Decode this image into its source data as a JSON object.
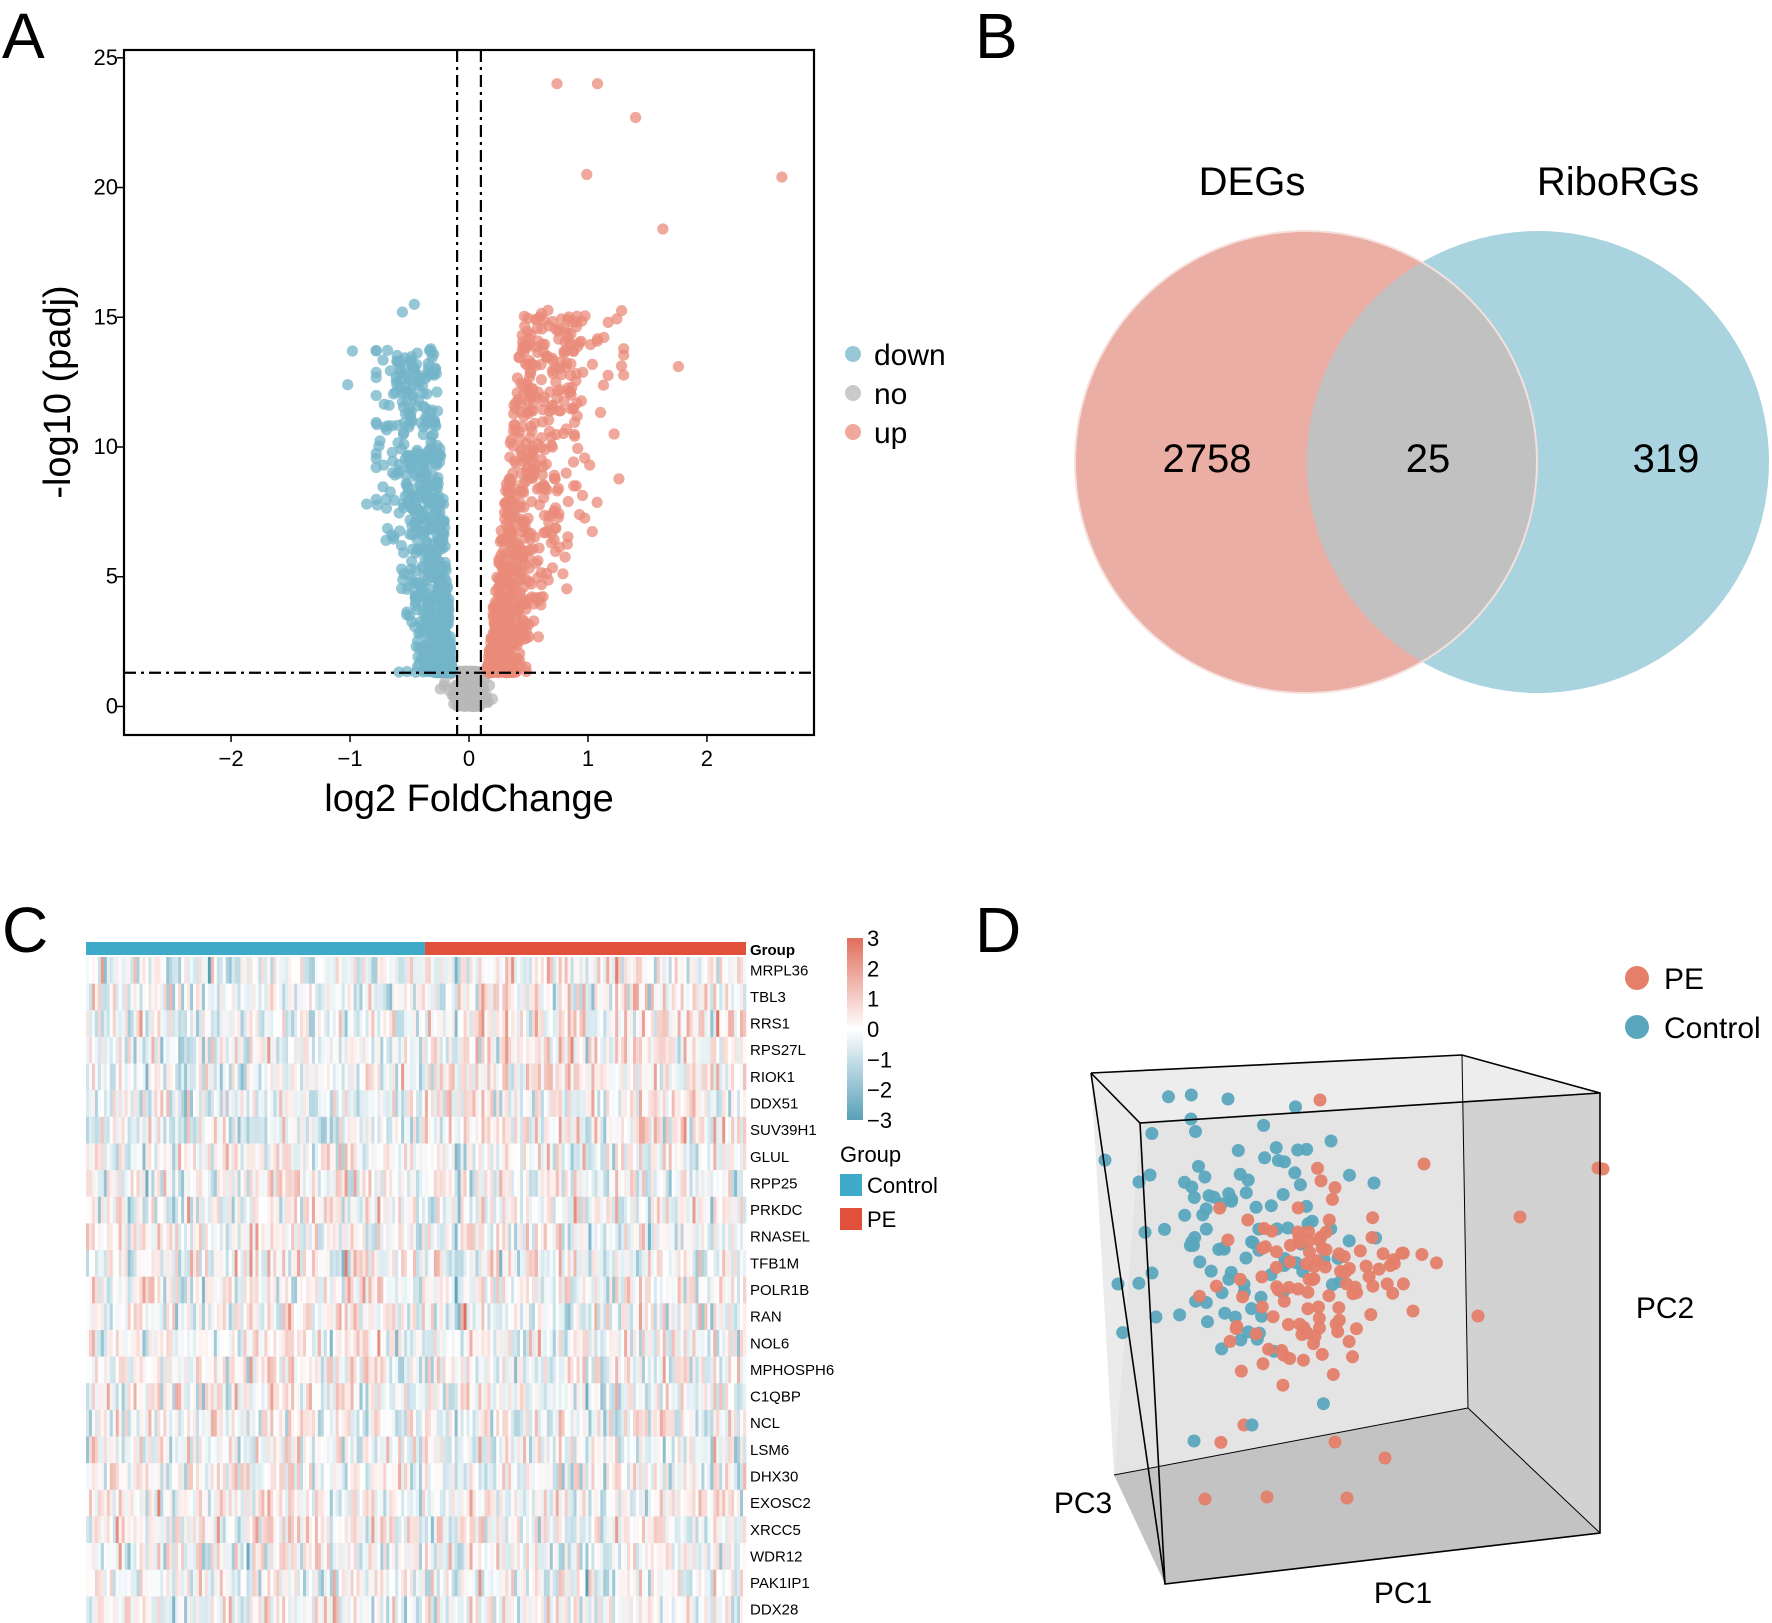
{
  "panels": {
    "a": {
      "letter": "A"
    },
    "b": {
      "letter": "B"
    },
    "c": {
      "letter": "C"
    },
    "d": {
      "letter": "D"
    }
  },
  "colors": {
    "down": "#73b4c8",
    "no": "#b8b8b8",
    "up": "#e98b7a",
    "deg_circle": "#ebaea4",
    "ribo_circle": "#a9d3de",
    "overlap": "#c1c1c1",
    "control_bar": "#3ea9c8",
    "pe_bar": "#e0503b",
    "pca_pe": "#e4806a",
    "pca_control": "#5aa7bd"
  },
  "chart_data": [
    {
      "type": "scatter",
      "panel": "A",
      "title": "",
      "xlabel": "log2 FoldChange",
      "ylabel": "-log10 (padj)",
      "xlim": [
        -2.9,
        2.9
      ],
      "ylim": [
        -1.1,
        25.3
      ],
      "xticks": [
        -2,
        -1,
        0,
        1,
        2
      ],
      "yticks": [
        0,
        5,
        10,
        15,
        20,
        25
      ],
      "xtick_labels": [
        "−2",
        "−1",
        "0",
        "1",
        "2"
      ],
      "ytick_labels": [
        "0",
        "5",
        "10",
        "15",
        "20",
        "25"
      ],
      "vlines": [
        -0.1,
        0.1
      ],
      "hline": 1.3,
      "legend": [
        "down",
        "no",
        "up"
      ],
      "highlighted_points": {
        "up": [
          [
            0.74,
            24.0
          ],
          [
            1.08,
            24.0
          ],
          [
            1.4,
            22.7
          ],
          [
            2.63,
            20.4
          ],
          [
            1.63,
            18.4
          ],
          [
            1.76,
            13.1
          ],
          [
            1.22,
            10.5
          ],
          [
            0.99,
            20.5
          ],
          [
            1.17,
            14.8
          ],
          [
            0.88,
            8.5
          ]
        ],
        "down": [
          [
            -0.98,
            13.7
          ],
          [
            -1.02,
            12.4
          ],
          [
            -0.86,
            7.8
          ],
          [
            -0.56,
            15.2
          ],
          [
            -0.46,
            15.5
          ],
          [
            -0.6,
            13.3
          ]
        ]
      },
      "bulk_counts": {
        "down": 700,
        "no": 450,
        "up": 780
      }
    },
    {
      "type": "venn",
      "panel": "B",
      "sets": [
        "DEGs",
        "RiboRGs"
      ],
      "only_degs": "2758",
      "intersection": "25",
      "only_riborgs": "319"
    },
    {
      "type": "heatmap",
      "panel": "C",
      "group_header": "Group",
      "rows": [
        "MRPL36",
        "TBL3",
        "RRS1",
        "RPS27L",
        "RIOK1",
        "DDX51",
        "SUV39H1",
        "GLUL",
        "RPP25",
        "PRKDC",
        "RNASEL",
        "TFB1M",
        "POLR1B",
        "RAN",
        "NOL6",
        "MPHOSPH6",
        "C1QBP",
        "NCL",
        "LSM6",
        "DHX30",
        "EXOSC2",
        "XRCC5",
        "WDR12",
        "PAK1IP1",
        "DDX28"
      ],
      "groups": [
        {
          "name": "Control",
          "n_samples": 114
        },
        {
          "name": "PE",
          "n_samples": 108
        }
      ],
      "color_scale": {
        "min": -3,
        "max": 3,
        "ticks": [
          "3",
          "2",
          "1",
          "0",
          "−1",
          "−2",
          "−3"
        ]
      },
      "legend_title": "Group",
      "legend": [
        "Control",
        "PE"
      ]
    },
    {
      "type": "scatter3d",
      "panel": "D",
      "axes": [
        "PC1",
        "PC2",
        "PC3"
      ],
      "legend": [
        "PE",
        "Control"
      ],
      "series": [
        {
          "name": "PE",
          "n_points": 110
        },
        {
          "name": "Control",
          "n_points": 100
        }
      ]
    }
  ]
}
